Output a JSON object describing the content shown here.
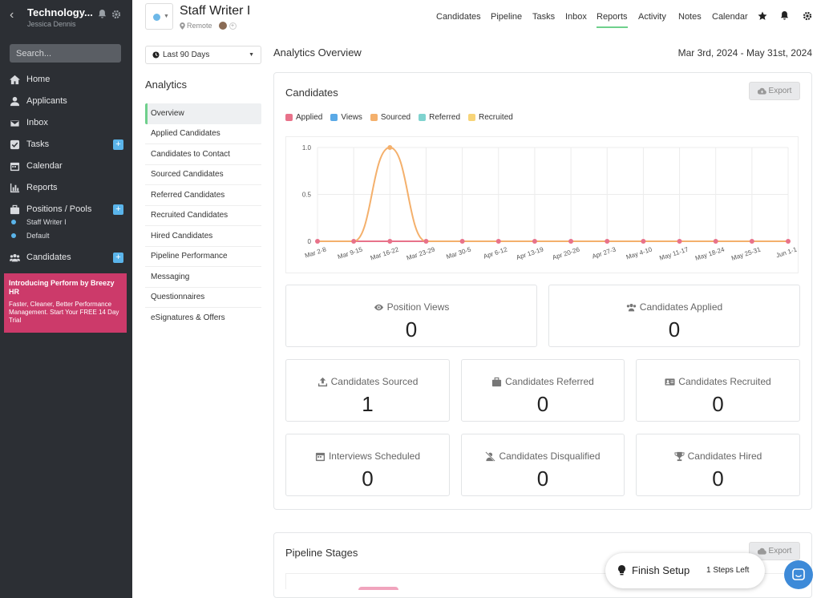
{
  "sidebar": {
    "company": "Technology...",
    "user": "Jessica Dennis",
    "search_placeholder": "Search...",
    "items": [
      {
        "label": "Home",
        "icon": "home-icon"
      },
      {
        "label": "Applicants",
        "icon": "user-icon"
      },
      {
        "label": "Inbox",
        "icon": "inbox-icon"
      },
      {
        "label": "Tasks",
        "icon": "check-square-icon",
        "plus": "+"
      },
      {
        "label": "Calendar",
        "icon": "calendar-icon"
      },
      {
        "label": "Reports",
        "icon": "chart-icon"
      },
      {
        "label": "Positions / Pools",
        "icon": "briefcase-icon",
        "plus": "+"
      },
      {
        "label": "Candidates",
        "icon": "users-icon",
        "plus": "+"
      }
    ],
    "pools": [
      "Staff Writer I",
      "Default"
    ],
    "promo": {
      "title": "Introducing Perform by Breezy HR",
      "body": "Faster, Cleaner, Better Performance Management. Start Your FREE 14 Day Trial"
    }
  },
  "header": {
    "job_title": "Staff Writer I",
    "location": "Remote",
    "add": "+",
    "nav": [
      "Candidates",
      "Pipeline",
      "Tasks",
      "Inbox",
      "Reports",
      "Activity",
      "Notes",
      "Calendar"
    ],
    "active_nav": "Reports"
  },
  "analytics_menu": {
    "range": "Last 90 Days",
    "heading": "Analytics",
    "items": [
      "Overview",
      "Applied Candidates",
      "Candidates to Contact",
      "Sourced Candidates",
      "Referred Candidates",
      "Recruited Candidates",
      "Hired Candidates",
      "Pipeline Performance",
      "Messaging",
      "Questionnaires",
      "eSignatures & Offers"
    ]
  },
  "main": {
    "title": "Analytics Overview",
    "date_range": "Mar 3rd, 2024 - May 31st, 2024",
    "candidates_card": {
      "title": "Candidates",
      "export_label": "Export",
      "legend": [
        {
          "name": "Applied",
          "color": "#e8728a"
        },
        {
          "name": "Views",
          "color": "#5aa9e6"
        },
        {
          "name": "Sourced",
          "color": "#f4b06c"
        },
        {
          "name": "Referred",
          "color": "#7fd3cf"
        },
        {
          "name": "Recruited",
          "color": "#f7d478"
        }
      ]
    },
    "stats": [
      {
        "label": "Position Views",
        "value": "0",
        "icon": "eye-icon"
      },
      {
        "label": "Candidates Applied",
        "value": "0",
        "icon": "users-icon"
      },
      {
        "label": "Candidates Sourced",
        "value": "1",
        "icon": "upload-icon"
      },
      {
        "label": "Candidates Referred",
        "value": "0",
        "icon": "briefcase-icon"
      },
      {
        "label": "Candidates Recruited",
        "value": "0",
        "icon": "id-card-icon"
      },
      {
        "label": "Interviews Scheduled",
        "value": "0",
        "icon": "calendar-icon"
      },
      {
        "label": "Candidates Disqualified",
        "value": "0",
        "icon": "user-slash-icon"
      },
      {
        "label": "Candidates Hired",
        "value": "0",
        "icon": "trophy-icon"
      }
    ],
    "pipeline_card": {
      "title": "Pipeline Stages",
      "export_label": "Export"
    }
  },
  "finish_setup": {
    "label": "Finish Setup",
    "steps": "1 Steps Left"
  },
  "chart_data": {
    "type": "line",
    "categories": [
      "Mar 2-8",
      "Mar 9-15",
      "Mar 16-22",
      "Mar 23-29",
      "Mar 30-5",
      "Apr 6-12",
      "Apr 13-19",
      "Apr 20-26",
      "Apr 27-3",
      "May 4-10",
      "May 11-17",
      "May 18-24",
      "May 25-31",
      "Jun 1-1"
    ],
    "series": [
      {
        "name": "Applied",
        "values": [
          0,
          0,
          0,
          0,
          0,
          0,
          0,
          0,
          0,
          0,
          0,
          0,
          0,
          0
        ],
        "color": "#e8728a"
      },
      {
        "name": "Views",
        "values": [
          0,
          0,
          0,
          0,
          0,
          0,
          0,
          0,
          0,
          0,
          0,
          0,
          0,
          0
        ],
        "color": "#5aa9e6"
      },
      {
        "name": "Sourced",
        "values": [
          0,
          0,
          1,
          0,
          0,
          0,
          0,
          0,
          0,
          0,
          0,
          0,
          0,
          0
        ],
        "color": "#f4b06c"
      },
      {
        "name": "Referred",
        "values": [
          0,
          0,
          0,
          0,
          0,
          0,
          0,
          0,
          0,
          0,
          0,
          0,
          0,
          0
        ],
        "color": "#7fd3cf"
      },
      {
        "name": "Recruited",
        "values": [
          0,
          0,
          0,
          0,
          0,
          0,
          0,
          0,
          0,
          0,
          0,
          0,
          0,
          0
        ],
        "color": "#f7d478"
      }
    ],
    "yticks": [
      "1.0",
      "0.5",
      "0"
    ],
    "ylim": [
      0,
      1
    ],
    "grid": true
  }
}
